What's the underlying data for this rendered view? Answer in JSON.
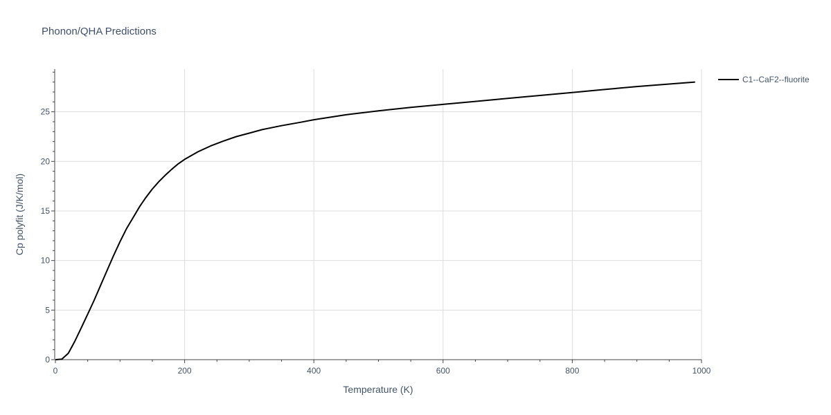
{
  "chart_data": {
    "type": "line",
    "title": "Phonon/QHA Predictions",
    "xlabel": "Temperature (K)",
    "ylabel": "Cp polyfit (J/K/mol)",
    "xlim": [
      0,
      1000
    ],
    "ylim": [
      0,
      29.3
    ],
    "x_ticks": [
      0,
      200,
      400,
      600,
      800,
      1000
    ],
    "y_ticks": [
      0,
      5,
      10,
      15,
      20,
      25
    ],
    "grid": true,
    "legend_position": "top-right",
    "series": [
      {
        "name": "C1--CaF2--fluorite",
        "color": "#000000",
        "x": [
          0,
          10,
          20,
          30,
          40,
          50,
          60,
          70,
          80,
          90,
          100,
          110,
          120,
          130,
          140,
          150,
          160,
          170,
          180,
          190,
          200,
          220,
          240,
          260,
          280,
          300,
          320,
          350,
          380,
          400,
          450,
          500,
          550,
          600,
          650,
          700,
          750,
          800,
          850,
          900,
          950,
          990
        ],
        "y": [
          0,
          0.05,
          0.65,
          1.85,
          3.2,
          4.6,
          6.0,
          7.5,
          9.0,
          10.5,
          11.9,
          13.2,
          14.3,
          15.4,
          16.35,
          17.2,
          17.95,
          18.6,
          19.2,
          19.75,
          20.2,
          20.95,
          21.55,
          22.05,
          22.5,
          22.85,
          23.2,
          23.6,
          23.95,
          24.2,
          24.7,
          25.1,
          25.45,
          25.75,
          26.05,
          26.35,
          26.65,
          26.95,
          27.25,
          27.55,
          27.8,
          28.0
        ]
      }
    ]
  }
}
